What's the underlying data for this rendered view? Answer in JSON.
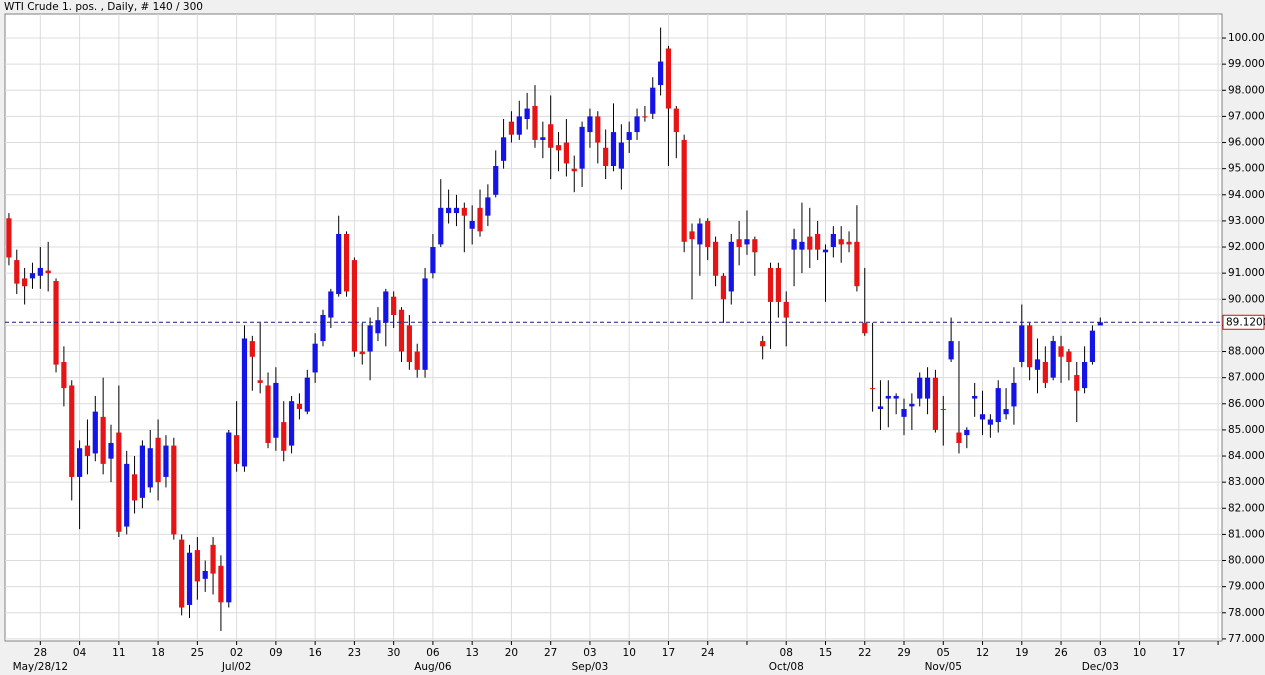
{
  "chart_data": {
    "type": "candlestick",
    "title": "WTI Crude 1. pos. , Daily, # 140 / 300",
    "up_color": "#1414e6",
    "down_color": "#e61414",
    "grid": true,
    "ylim": [
      76.92,
      100.92
    ],
    "yticks": [
      {
        "value": 77,
        "label": "77.0000"
      },
      {
        "value": 78,
        "label": "78.0000"
      },
      {
        "value": 79,
        "label": "79.0000"
      },
      {
        "value": 80,
        "label": "80.0000"
      },
      {
        "value": 81,
        "label": "81.0000"
      },
      {
        "value": 82,
        "label": "82.0000"
      },
      {
        "value": 83,
        "label": "83.0000"
      },
      {
        "value": 84,
        "label": "84.0000"
      },
      {
        "value": 85,
        "label": "85.0000"
      },
      {
        "value": 86,
        "label": "86.0000"
      },
      {
        "value": 87,
        "label": "87.0000"
      },
      {
        "value": 88,
        "label": "88.0000"
      },
      {
        "value": 89,
        "label": "89.0000"
      },
      {
        "value": 90,
        "label": "90.0000"
      },
      {
        "value": 91,
        "label": "91.0000"
      },
      {
        "value": 92,
        "label": "92.0000"
      },
      {
        "value": 93,
        "label": "93.0000"
      },
      {
        "value": 94,
        "label": "94.0000"
      },
      {
        "value": 95,
        "label": "95.0000"
      },
      {
        "value": 96,
        "label": "96.0000"
      },
      {
        "value": 97,
        "label": "97.0000"
      },
      {
        "value": 98,
        "label": "98.0000"
      },
      {
        "value": 99,
        "label": "99.0000"
      },
      {
        "value": 100,
        "label": "100.0000"
      }
    ],
    "last_price": {
      "value": 89.12,
      "label": "89.1200"
    },
    "categories": [
      null,
      null,
      null,
      null,
      "28",
      null,
      null,
      null,
      null,
      "04",
      null,
      null,
      null,
      null,
      "11",
      null,
      null,
      null,
      null,
      "18",
      null,
      null,
      null,
      null,
      "25",
      null,
      null,
      null,
      null,
      "02",
      null,
      null,
      null,
      null,
      "09",
      null,
      null,
      null,
      null,
      "16",
      null,
      null,
      null,
      null,
      "23",
      null,
      null,
      null,
      null,
      "30",
      null,
      null,
      null,
      null,
      "06",
      null,
      null,
      null,
      null,
      "13",
      null,
      null,
      null,
      null,
      "20",
      null,
      null,
      null,
      null,
      "27",
      null,
      null,
      null,
      null,
      "03",
      null,
      null,
      null,
      null,
      "10",
      null,
      null,
      null,
      null,
      "17",
      null,
      null,
      null,
      null,
      "24",
      null,
      null,
      null,
      null,
      null,
      null,
      null,
      null,
      null,
      "08",
      null,
      null,
      null,
      null,
      "15",
      null,
      null,
      null,
      null,
      "22",
      null,
      null,
      null,
      null,
      "29",
      null,
      null,
      null,
      null,
      "05",
      null,
      null,
      null,
      null,
      "12",
      null,
      null,
      null,
      null,
      "19",
      null,
      null,
      null,
      null,
      "26",
      null,
      null,
      null,
      null,
      "03",
      null,
      null,
      null,
      null,
      "10",
      null,
      null,
      null,
      null,
      "17",
      null,
      null,
      null,
      null,
      null
    ],
    "categories_month": [
      null,
      null,
      null,
      null,
      "May/28/12",
      null,
      null,
      null,
      null,
      null,
      null,
      null,
      null,
      null,
      null,
      null,
      null,
      null,
      null,
      null,
      null,
      null,
      null,
      null,
      null,
      null,
      null,
      null,
      null,
      "Jul/02",
      null,
      null,
      null,
      null,
      null,
      null,
      null,
      null,
      null,
      null,
      null,
      null,
      null,
      null,
      null,
      null,
      null,
      null,
      null,
      null,
      null,
      null,
      null,
      null,
      "Aug/06",
      null,
      null,
      null,
      null,
      null,
      null,
      null,
      null,
      null,
      null,
      null,
      null,
      null,
      null,
      null,
      null,
      null,
      null,
      null,
      "Sep/03",
      null,
      null,
      null,
      null,
      null,
      null,
      null,
      null,
      null,
      null,
      null,
      null,
      null,
      null,
      null,
      null,
      null,
      null,
      null,
      null,
      null,
      null,
      null,
      null,
      "Oct/08",
      null,
      null,
      null,
      null,
      null,
      null,
      null,
      null,
      null,
      null,
      null,
      null,
      null,
      null,
      null,
      null,
      null,
      null,
      null,
      "Nov/05",
      null,
      null,
      null,
      null,
      null,
      null,
      null,
      null,
      null,
      null,
      null,
      null,
      null,
      null,
      null,
      null,
      null,
      null,
      null,
      "Dec/03",
      null,
      null,
      null,
      null,
      null,
      null,
      null,
      null,
      null,
      null,
      null,
      null,
      null,
      null,
      null
    ],
    "open": [
      93.1,
      91.5,
      90.8,
      90.8,
      90.9,
      91.1,
      90.7,
      87.6,
      86.7,
      83.2,
      84.4,
      84.1,
      85.5,
      83.9,
      84.9,
      81.3,
      83.3,
      82.4,
      82.8,
      84.7,
      83.2,
      84.4,
      80.8,
      78.3,
      80.4,
      79.3,
      80.6,
      79.8,
      78.4,
      84.8,
      83.6,
      88.4,
      86.9,
      86.7,
      84.7,
      85.3,
      84.4,
      86.0,
      85.7,
      87.2,
      88.4,
      89.3,
      90.2,
      92.5,
      91.5,
      88.0,
      88.0,
      88.7,
      89.1,
      90.1,
      89.6,
      89.0,
      88.0,
      87.3,
      91.0,
      92.1,
      93.3,
      93.3,
      93.5,
      92.7,
      93.5,
      93.2,
      94.0,
      95.3,
      96.8,
      96.3,
      96.9,
      97.4,
      96.1,
      96.7,
      95.9,
      96.0,
      95.0,
      95.0,
      96.4,
      97.0,
      95.8,
      95.1,
      95.0,
      96.1,
      96.4,
      97.0,
      97.1,
      98.2,
      99.6,
      97.3,
      96.1,
      92.6,
      92.1,
      93.0,
      92.2,
      90.9,
      90.3,
      92.3,
      92.1,
      92.3,
      88.4,
      91.2,
      91.2,
      89.9,
      91.9,
      91.9,
      92.4,
      92.5,
      91.8,
      92.0,
      92.3,
      92.2,
      92.2,
      89.1,
      86.6,
      85.8,
      86.2,
      86.2,
      85.5,
      85.9,
      86.2,
      86.2,
      87.0,
      85.8,
      87.7,
      84.9,
      84.8,
      86.2,
      85.4,
      85.2,
      85.3,
      85.6,
      85.9,
      87.6,
      89.0,
      87.3,
      87.6,
      87.0,
      88.2,
      88.0,
      87.1,
      86.6,
      87.6,
      89.0,
      null,
      null,
      null,
      null,
      null,
      null,
      null,
      null,
      null,
      null,
      null,
      null,
      null,
      null,
      null
    ],
    "high": [
      93.3,
      91.9,
      91.2,
      91.4,
      92.0,
      92.2,
      90.8,
      88.2,
      86.9,
      84.6,
      85.4,
      86.3,
      87.0,
      85.2,
      86.7,
      84.2,
      84.0,
      84.6,
      85.0,
      85.4,
      84.8,
      84.7,
      81.0,
      80.6,
      80.9,
      80.0,
      80.9,
      80.2,
      85.0,
      86.1,
      89.0,
      88.6,
      89.1,
      87.2,
      87.4,
      86.1,
      86.3,
      86.4,
      87.3,
      88.7,
      89.6,
      90.4,
      93.2,
      92.6,
      91.6,
      89.1,
      89.3,
      89.7,
      90.4,
      90.3,
      89.7,
      89.4,
      88.3,
      91.2,
      92.5,
      94.6,
      94.2,
      94.0,
      93.7,
      93.6,
      94.2,
      94.4,
      95.7,
      96.9,
      97.2,
      97.6,
      97.9,
      98.2,
      96.8,
      97.8,
      96.4,
      96.9,
      95.5,
      96.8,
      97.3,
      97.2,
      96.5,
      97.5,
      96.7,
      96.8,
      97.3,
      97.4,
      98.5,
      100.4,
      99.7,
      97.4,
      96.3,
      92.9,
      93.1,
      93.1,
      92.4,
      91.0,
      92.5,
      93.0,
      93.4,
      92.4,
      88.6,
      91.4,
      91.4,
      90.3,
      92.7,
      93.7,
      93.5,
      93.0,
      92.1,
      92.8,
      92.8,
      92.6,
      93.6,
      91.2,
      89.1,
      86.9,
      86.9,
      86.4,
      86.2,
      86.4,
      87.2,
      87.4,
      87.3,
      86.3,
      89.3,
      88.4,
      85.1,
      86.8,
      86.5,
      85.6,
      86.9,
      86.6,
      87.4,
      89.8,
      89.1,
      88.5,
      88.2,
      88.6,
      88.6,
      88.1,
      87.6,
      88.2,
      89.0,
      89.3,
      null,
      null,
      null,
      null,
      null,
      null,
      null,
      null,
      null,
      null,
      null,
      null,
      null,
      null,
      null
    ],
    "low": [
      91.3,
      90.2,
      89.8,
      90.4,
      90.4,
      90.3,
      87.2,
      85.9,
      82.3,
      81.2,
      83.3,
      83.8,
      83.3,
      83.0,
      80.9,
      81.0,
      81.8,
      82.0,
      82.6,
      82.3,
      82.8,
      80.8,
      77.9,
      77.8,
      78.5,
      78.8,
      78.7,
      77.3,
      78.2,
      83.4,
      83.4,
      86.5,
      86.4,
      84.3,
      84.2,
      83.8,
      84.1,
      85.4,
      85.6,
      86.8,
      88.2,
      88.9,
      90.1,
      90.1,
      87.8,
      87.5,
      86.9,
      88.4,
      88.2,
      88.9,
      87.6,
      87.3,
      87.0,
      87.0,
      90.8,
      92.0,
      92.9,
      92.8,
      91.8,
      92.1,
      92.4,
      92.8,
      93.9,
      95.0,
      96.0,
      96.1,
      96.5,
      95.8,
      95.4,
      94.6,
      94.9,
      94.7,
      94.1,
      94.3,
      95.8,
      95.2,
      94.6,
      94.9,
      94.2,
      95.6,
      96.1,
      96.8,
      96.9,
      97.8,
      95.1,
      95.4,
      91.8,
      90.0,
      90.9,
      91.5,
      90.5,
      89.1,
      89.8,
      91.3,
      91.7,
      90.9,
      87.7,
      88.1,
      89.3,
      88.2,
      90.5,
      91.0,
      91.2,
      91.5,
      89.9,
      91.6,
      91.4,
      91.8,
      90.3,
      88.6,
      85.7,
      85.0,
      85.1,
      85.6,
      84.8,
      85.0,
      85.9,
      85.6,
      84.9,
      84.4,
      87.6,
      84.1,
      84.3,
      85.5,
      84.8,
      84.7,
      84.9,
      85.4,
      85.2,
      87.4,
      86.9,
      86.4,
      86.6,
      86.9,
      86.8,
      86.9,
      85.3,
      86.4,
      87.5,
      89.0,
      null,
      null,
      null,
      null,
      null,
      null,
      null,
      null,
      null,
      null,
      null,
      null,
      null,
      null,
      null
    ],
    "close": [
      91.6,
      90.6,
      90.5,
      91.0,
      91.2,
      91.0,
      87.5,
      86.6,
      83.2,
      84.3,
      84.0,
      85.7,
      83.7,
      84.5,
      81.1,
      83.7,
      82.3,
      84.4,
      84.3,
      83.0,
      84.4,
      81.0,
      78.2,
      80.3,
      79.2,
      79.6,
      79.5,
      78.4,
      84.9,
      83.7,
      88.5,
      87.8,
      86.8,
      84.5,
      86.8,
      84.2,
      86.1,
      85.8,
      87.0,
      88.3,
      89.4,
      90.3,
      92.5,
      90.3,
      88.0,
      87.9,
      89.0,
      89.2,
      90.3,
      89.4,
      88.0,
      87.6,
      87.3,
      90.8,
      92.0,
      93.5,
      93.5,
      93.5,
      93.2,
      93.0,
      92.6,
      93.9,
      95.1,
      96.2,
      96.3,
      97.0,
      97.3,
      96.1,
      96.2,
      95.8,
      95.7,
      95.2,
      94.9,
      96.6,
      97.0,
      96.0,
      95.1,
      96.4,
      96.0,
      96.4,
      97.0,
      97.0,
      98.1,
      99.1,
      97.3,
      96.4,
      92.2,
      92.3,
      92.9,
      92.0,
      90.9,
      90.0,
      92.2,
      92.0,
      92.3,
      91.8,
      88.2,
      89.9,
      89.9,
      89.3,
      92.3,
      92.2,
      91.9,
      91.9,
      91.9,
      92.5,
      92.1,
      92.1,
      90.5,
      88.7,
      86.6,
      85.9,
      86.3,
      86.3,
      85.8,
      86.0,
      87.0,
      87.0,
      85.0,
      85.8,
      88.4,
      84.5,
      85.0,
      86.3,
      85.6,
      85.4,
      86.6,
      85.8,
      86.8,
      89.0,
      87.4,
      87.7,
      86.8,
      88.4,
      87.8,
      87.6,
      86.5,
      87.6,
      88.8,
      89.12,
      null,
      null,
      null,
      null,
      null,
      null,
      null,
      null,
      null,
      null,
      null,
      null,
      null,
      null,
      null
    ]
  }
}
